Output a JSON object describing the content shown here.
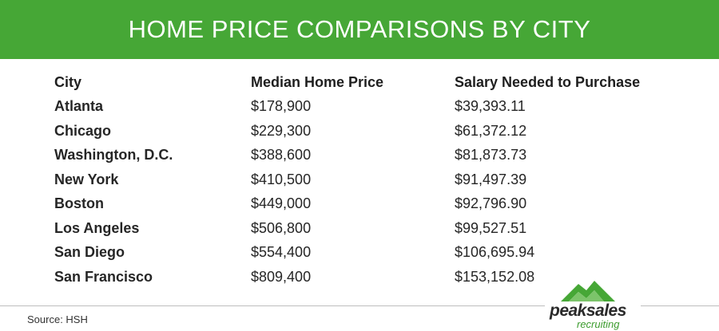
{
  "title": "HOME PRICE COMPARISONS BY CITY",
  "source": "Source: HSH",
  "logo": {
    "wordmark": "peaksales",
    "tagline": "recruiting",
    "color": "#46a736"
  },
  "colors": {
    "banner": "#46a736"
  },
  "chart_data": {
    "type": "table",
    "columns": [
      "City",
      "Median Home Price",
      "Salary Needed to Purchase"
    ],
    "rows": [
      [
        "Atlanta",
        "$178,900",
        "$39,393.11"
      ],
      [
        "Chicago",
        "$229,300",
        "$61,372.12"
      ],
      [
        "Washington, D.C.",
        "$388,600",
        "$81,873.73"
      ],
      [
        "New York",
        "$410,500",
        "$91,497.39"
      ],
      [
        "Boston",
        "$449,000",
        "$92,796.90"
      ],
      [
        "Los Angeles",
        "$506,800",
        "$99,527.51"
      ],
      [
        "San Diego",
        "$554,400",
        "$106,695.94"
      ],
      [
        "San Francisco",
        "$809,400",
        "$153,152.08"
      ]
    ]
  }
}
